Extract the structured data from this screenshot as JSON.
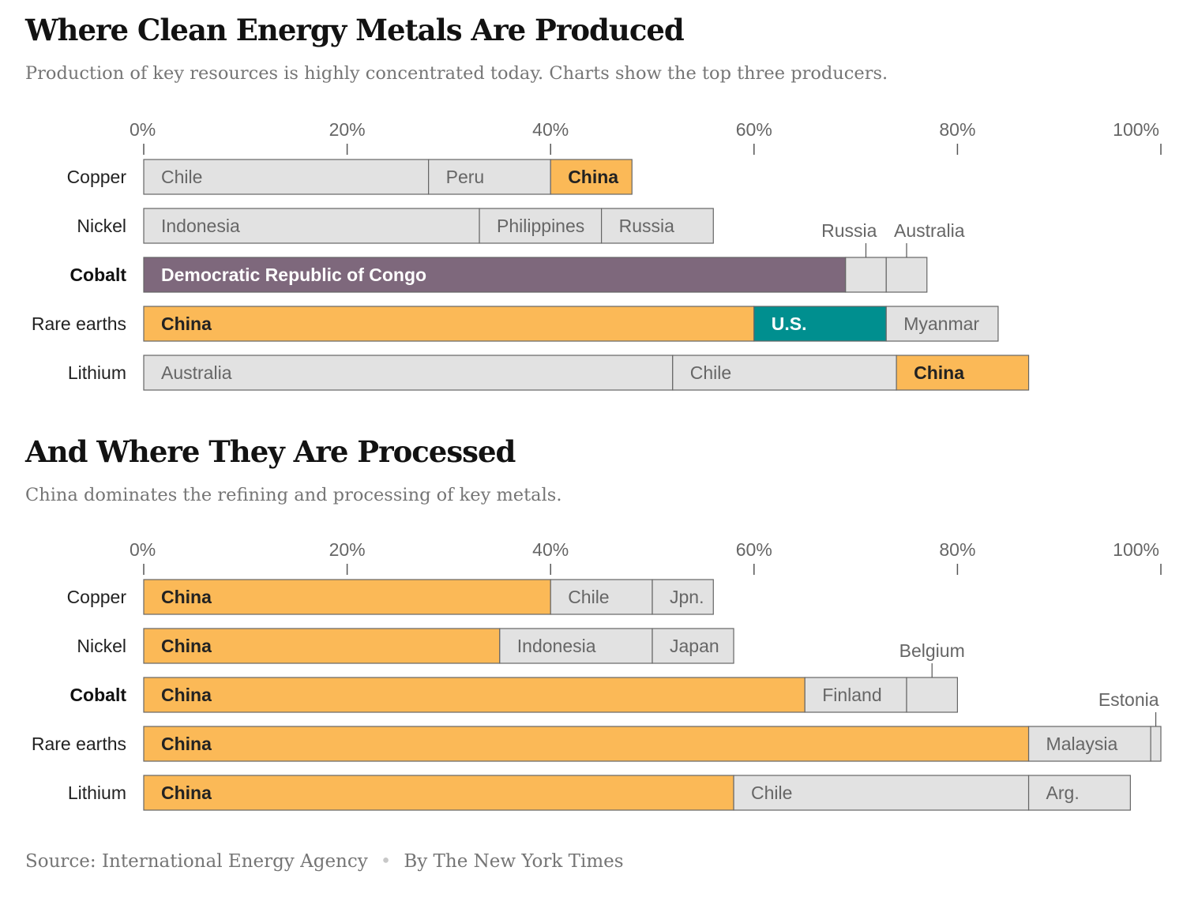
{
  "colors": {
    "china": "#fbb957",
    "drc": "#7e687c",
    "us": "#008f8f",
    "other": "#e2e2e2",
    "stroke": "#666666",
    "label_muted": "#666666",
    "label_dark": "#222222"
  },
  "footer": {
    "source": "Source: International Energy Agency",
    "credit": "By The New York Times"
  },
  "chart_data": [
    {
      "type": "bar",
      "stacked": true,
      "orientation": "horizontal",
      "title": "Where Clean Energy Metals Are Produced",
      "subtitle": "Production of key resources is highly concentrated today. Charts show the top three producers.",
      "xlim": [
        0,
        100
      ],
      "ticks": [
        "0%",
        "20%",
        "40%",
        "60%",
        "80%",
        "100%"
      ],
      "categories": [
        {
          "name": "Copper",
          "bold": false,
          "segments": [
            {
              "country": "Chile",
              "value": 28,
              "color": "other"
            },
            {
              "country": "Peru",
              "value": 12,
              "color": "other"
            },
            {
              "country": "China",
              "value": 8,
              "color": "china"
            }
          ]
        },
        {
          "name": "Nickel",
          "bold": false,
          "segments": [
            {
              "country": "Indonesia",
              "value": 33,
              "color": "other"
            },
            {
              "country": "Philippines",
              "value": 12,
              "color": "other"
            },
            {
              "country": "Russia",
              "value": 11,
              "color": "other"
            }
          ]
        },
        {
          "name": "Cobalt",
          "bold": true,
          "segments": [
            {
              "country": "Democratic Republic of Congo",
              "value": 69,
              "color": "drc"
            },
            {
              "country": "Russia",
              "value": 4,
              "color": "other",
              "callout": true
            },
            {
              "country": "Australia",
              "value": 4,
              "color": "other",
              "callout": true
            }
          ]
        },
        {
          "name": "Rare earths",
          "bold": false,
          "segments": [
            {
              "country": "China",
              "value": 60,
              "color": "china"
            },
            {
              "country": "U.S.",
              "value": 13,
              "color": "us"
            },
            {
              "country": "Myanmar",
              "value": 11,
              "color": "other"
            }
          ]
        },
        {
          "name": "Lithium",
          "bold": false,
          "segments": [
            {
              "country": "Australia",
              "value": 52,
              "color": "other"
            },
            {
              "country": "Chile",
              "value": 22,
              "color": "other"
            },
            {
              "country": "China",
              "value": 13,
              "color": "china"
            }
          ]
        }
      ]
    },
    {
      "type": "bar",
      "stacked": true,
      "orientation": "horizontal",
      "title": "And Where They Are Processed",
      "subtitle": "China dominates the refining and processing of key metals.",
      "xlim": [
        0,
        100
      ],
      "ticks": [
        "0%",
        "20%",
        "40%",
        "60%",
        "80%",
        "100%"
      ],
      "categories": [
        {
          "name": "Copper",
          "bold": false,
          "segments": [
            {
              "country": "China",
              "value": 40,
              "color": "china"
            },
            {
              "country": "Chile",
              "value": 10,
              "color": "other"
            },
            {
              "country": "Jpn.",
              "value": 6,
              "color": "other"
            }
          ]
        },
        {
          "name": "Nickel",
          "bold": false,
          "segments": [
            {
              "country": "China",
              "value": 35,
              "color": "china"
            },
            {
              "country": "Indonesia",
              "value": 15,
              "color": "other"
            },
            {
              "country": "Japan",
              "value": 8,
              "color": "other"
            }
          ]
        },
        {
          "name": "Cobalt",
          "bold": true,
          "segments": [
            {
              "country": "China",
              "value": 65,
              "color": "china"
            },
            {
              "country": "Finland",
              "value": 10,
              "color": "other"
            },
            {
              "country": "Belgium",
              "value": 5,
              "color": "other",
              "callout": true
            }
          ]
        },
        {
          "name": "Rare earths",
          "bold": false,
          "segments": [
            {
              "country": "China",
              "value": 87,
              "color": "china"
            },
            {
              "country": "Malaysia",
              "value": 12,
              "color": "other"
            },
            {
              "country": "Estonia",
              "value": 1,
              "color": "other",
              "callout": true
            }
          ]
        },
        {
          "name": "Lithium",
          "bold": false,
          "segments": [
            {
              "country": "China",
              "value": 58,
              "color": "china"
            },
            {
              "country": "Chile",
              "value": 29,
              "color": "other"
            },
            {
              "country": "Arg.",
              "value": 10,
              "color": "other"
            }
          ]
        }
      ]
    }
  ]
}
